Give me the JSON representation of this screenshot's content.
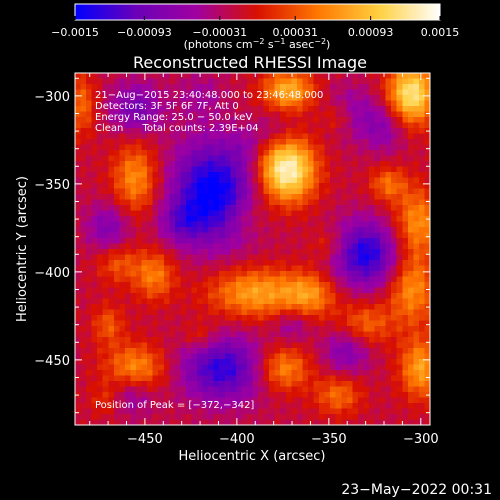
{
  "chart_data": {
    "type": "heatmap",
    "title": "Reconstructed RHESSI Image",
    "xlabel": "Heliocentric X (arcsec)",
    "ylabel": "Heliocentric Y (arcsec)",
    "xlim": [
      -488,
      -295
    ],
    "ylim": [
      -487,
      -287
    ],
    "x_ticks": [
      -450,
      -400,
      -350,
      -300
    ],
    "y_ticks": [
      -300,
      -350,
      -400,
      -450
    ],
    "x_tick_labels": [
      "−450",
      "−400",
      "−350",
      "−300"
    ],
    "y_tick_labels": [
      "−300",
      "−350",
      "−400",
      "−450"
    ],
    "colorbar": {
      "min": -0.0015,
      "max": 0.0015,
      "tick_values": [
        -0.0015,
        -0.00093,
        -0.00031,
        0.00031,
        0.00093,
        0.0015
      ],
      "tick_labels": [
        "−0.0015",
        "−0.00093",
        "−0.00031",
        "0.00031",
        "0.00093",
        "0.0015"
      ],
      "unit_label_parts": [
        "(photons cm",
        "−2",
        " s",
        "−1",
        " asec",
        "−2",
        ")"
      ],
      "colors": [
        "#0000ff",
        "#6a00b8",
        "#a000a0",
        "#d81000",
        "#ff7800",
        "#ffd040",
        "#ffffff"
      ]
    },
    "annotations": [
      "21−Aug−2015 23:40:48.000 to 23:46:48.000",
      "Detectors: 3F 5F 6F 7F, Att 0",
      "Energy Range: 25.0 − 50.0 keV",
      "Clean      Total counts: 2.39E+04",
      "Position of Peak = [−372,−342]"
    ],
    "peak_position": [
      -372,
      -342
    ],
    "blobs": [
      {
        "x": -373,
        "y": -342,
        "sx": 11,
        "sy": 13,
        "v": 0.0016
      },
      {
        "x": -305,
        "y": -299,
        "sx": 9,
        "sy": 12,
        "v": 0.0014
      },
      {
        "x": -372,
        "y": -297,
        "sx": 10,
        "sy": 8,
        "v": 0.001
      },
      {
        "x": -345,
        "y": -312,
        "sx": 7,
        "sy": 7,
        "v": 0.0006
      },
      {
        "x": -455,
        "y": -347,
        "sx": 9,
        "sy": 14,
        "v": 0.0008
      },
      {
        "x": -485,
        "y": -305,
        "sx": 6,
        "sy": 12,
        "v": 0.0006
      },
      {
        "x": -465,
        "y": -395,
        "sx": 8,
        "sy": 8,
        "v": 0.0005
      },
      {
        "x": -445,
        "y": -402,
        "sx": 8,
        "sy": 10,
        "v": 0.0007
      },
      {
        "x": -390,
        "y": -412,
        "sx": 18,
        "sy": 10,
        "v": 0.0009
      },
      {
        "x": -360,
        "y": -413,
        "sx": 10,
        "sy": 9,
        "v": 0.0007
      },
      {
        "x": -302,
        "y": -372,
        "sx": 9,
        "sy": 14,
        "v": 0.0008
      },
      {
        "x": -318,
        "y": -350,
        "sx": 7,
        "sy": 7,
        "v": 0.0006
      },
      {
        "x": -305,
        "y": -410,
        "sx": 9,
        "sy": 14,
        "v": 0.0008
      },
      {
        "x": -330,
        "y": -430,
        "sx": 10,
        "sy": 9,
        "v": 0.0006
      },
      {
        "x": -300,
        "y": -455,
        "sx": 8,
        "sy": 12,
        "v": 0.0009
      },
      {
        "x": -455,
        "y": -455,
        "sx": 12,
        "sy": 10,
        "v": 0.0008
      },
      {
        "x": -470,
        "y": -430,
        "sx": 6,
        "sy": 8,
        "v": 0.0005
      },
      {
        "x": -375,
        "y": -455,
        "sx": 10,
        "sy": 9,
        "v": 0.0008
      },
      {
        "x": -345,
        "y": -470,
        "sx": 9,
        "sy": 8,
        "v": 0.0006
      },
      {
        "x": -470,
        "y": -472,
        "sx": 7,
        "sy": 7,
        "v": 0.0005
      },
      {
        "x": -420,
        "y": -437,
        "sx": 7,
        "sy": 6,
        "v": 0.0004
      },
      {
        "x": -395,
        "y": -368,
        "sx": 8,
        "sy": 8,
        "v": 0.0003
      },
      {
        "x": -350,
        "y": -385,
        "sx": 7,
        "sy": 7,
        "v": 0.0004
      },
      {
        "x": -420,
        "y": -300,
        "sx": 9,
        "sy": 9,
        "v": -0.0003
      },
      {
        "x": -413,
        "y": -355,
        "sx": 16,
        "sy": 20,
        "v": -0.0014
      },
      {
        "x": -330,
        "y": -390,
        "sx": 13,
        "sy": 13,
        "v": -0.0012
      },
      {
        "x": -408,
        "y": -455,
        "sx": 16,
        "sy": 13,
        "v": -0.0011
      },
      {
        "x": -340,
        "y": -310,
        "sx": 10,
        "sy": 10,
        "v": -0.0006
      },
      {
        "x": -320,
        "y": -318,
        "sx": 8,
        "sy": 10,
        "v": -0.0005
      },
      {
        "x": -455,
        "y": -307,
        "sx": 10,
        "sy": 10,
        "v": -0.0007
      },
      {
        "x": -470,
        "y": -375,
        "sx": 8,
        "sy": 10,
        "v": -0.0006
      },
      {
        "x": -430,
        "y": -372,
        "sx": 8,
        "sy": 8,
        "v": -0.0005
      },
      {
        "x": -460,
        "y": -470,
        "sx": 10,
        "sy": 8,
        "v": -0.0006
      },
      {
        "x": -340,
        "y": -445,
        "sx": 9,
        "sy": 9,
        "v": -0.0006
      },
      {
        "x": -370,
        "y": -430,
        "sx": 7,
        "sy": 7,
        "v": -0.0004
      },
      {
        "x": -380,
        "y": -320,
        "sx": 9,
        "sy": 8,
        "v": -0.0003
      },
      {
        "x": -395,
        "y": -330,
        "sx": 7,
        "sy": 7,
        "v": -0.0002
      }
    ],
    "background_value": -0.00018
  },
  "footer": {
    "timestamp": "23−May−2022 00:31"
  }
}
